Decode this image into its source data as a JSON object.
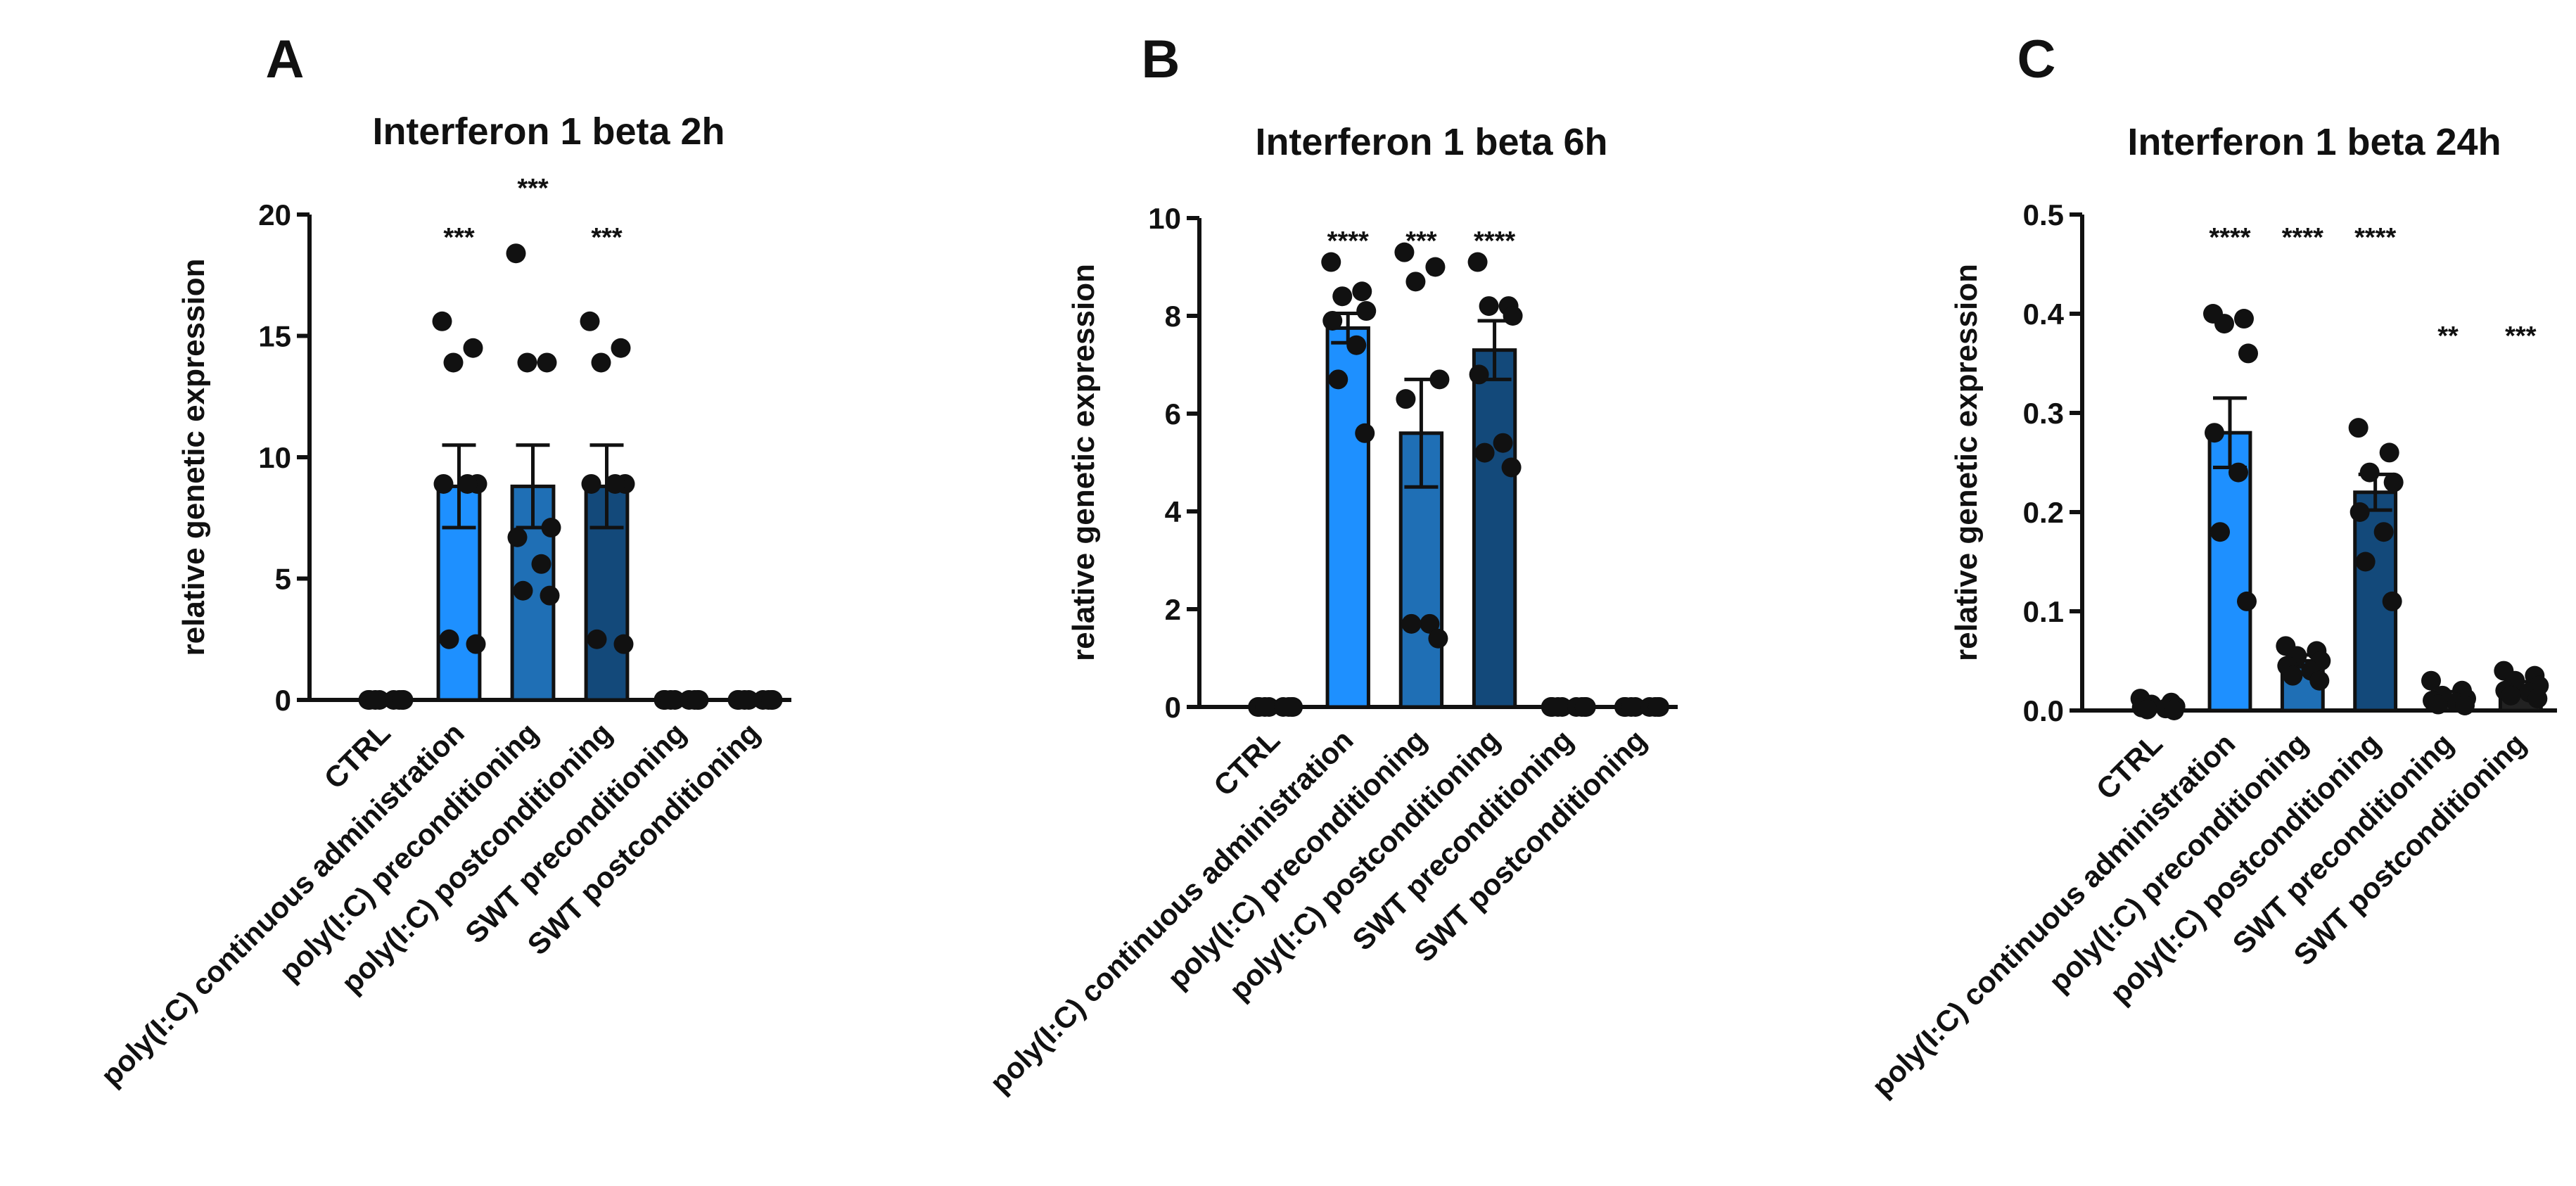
{
  "chart_data": [
    {
      "type": "bar",
      "panel": "A",
      "title": "Interferon 1 beta 2h",
      "ylabel": "relative genetic expression",
      "xlabel": "",
      "ylim": [
        0,
        20
      ],
      "yticks": [
        0,
        5,
        10,
        15,
        20
      ],
      "categories": [
        "CTRL",
        "poly(I:C) continuous administration",
        "poly(I:C) preconditioning",
        "poly(I:C) postconditioning",
        "SWT preconditioning",
        "SWT postconditioning"
      ],
      "colors": [
        "#222222",
        "#1E90FF",
        "#1F6FB5",
        "#13497A",
        "#222222",
        "#222222"
      ],
      "values": [
        0.0,
        8.8,
        8.8,
        8.8,
        0.0,
        0.0
      ],
      "errors": [
        0,
        1.7,
        1.7,
        1.7,
        0,
        0
      ],
      "significance": [
        "",
        "***",
        "***",
        "***",
        "",
        ""
      ],
      "points": [
        [
          0,
          0,
          0,
          0,
          0,
          0,
          0,
          0
        ],
        [
          15.6,
          14.5,
          13.9,
          8.9,
          8.9,
          8.9,
          2.5,
          2.3
        ],
        [
          18.4,
          13.9,
          13.9,
          7.1,
          6.7,
          5.6,
          4.5,
          4.3
        ],
        [
          15.6,
          14.5,
          13.9,
          8.9,
          8.9,
          8.9,
          2.5,
          2.3
        ],
        [
          0,
          0,
          0,
          0,
          0,
          0,
          0,
          0
        ],
        [
          0,
          0,
          0,
          0,
          0,
          0,
          0,
          0
        ]
      ]
    },
    {
      "type": "bar",
      "panel": "B",
      "title": "Interferon 1 beta 6h",
      "ylabel": "relative genetic expression",
      "xlabel": "",
      "ylim": [
        0,
        10
      ],
      "yticks": [
        0,
        2,
        4,
        6,
        8,
        10
      ],
      "categories": [
        "CTRL",
        "poly(I:C) continuous administration",
        "poly(I:C) preconditioning",
        "poly(I:C) postconditioning",
        "SWT preconditioning",
        "SWT postconditioning"
      ],
      "colors": [
        "#222222",
        "#1E90FF",
        "#1F6FB5",
        "#13497A",
        "#222222",
        "#222222"
      ],
      "values": [
        0.0,
        7.75,
        5.6,
        7.3,
        0.0,
        0.0
      ],
      "errors": [
        0,
        0.3,
        1.1,
        0.6,
        0,
        0
      ],
      "significance": [
        "",
        "****",
        "***",
        "****",
        "",
        ""
      ],
      "points": [
        [
          0,
          0,
          0,
          0,
          0,
          0,
          0,
          0
        ],
        [
          9.1,
          8.5,
          8.4,
          8.1,
          7.9,
          7.4,
          6.7,
          5.6
        ],
        [
          9.3,
          9.0,
          8.7,
          6.7,
          6.3,
          1.7,
          1.7,
          1.4
        ],
        [
          9.1,
          8.2,
          8.2,
          8.0,
          6.8,
          5.4,
          5.2,
          4.9
        ],
        [
          0,
          0,
          0,
          0,
          0,
          0,
          0,
          0
        ],
        [
          0,
          0,
          0,
          0,
          0,
          0,
          0,
          0
        ]
      ]
    },
    {
      "type": "bar",
      "panel": "C",
      "title": "Interferon 1 beta 24h",
      "ylabel": "relative genetic expression",
      "xlabel": "",
      "ylim": [
        0,
        0.5
      ],
      "yticks": [
        "0.0",
        "0.1",
        "0.2",
        "0.3",
        "0.4",
        "0.5"
      ],
      "categories": [
        "CTRL",
        "poly(I:C) continuous administration",
        "poly(I:C) preconditioning",
        "poly(I:C) postconditioning",
        "SWT preconditioning",
        "SWT postconditioning"
      ],
      "colors": [
        "#222222",
        "#1E90FF",
        "#1F6FB5",
        "#13497A",
        "#222222",
        "#222222"
      ],
      "values": [
        0.005,
        0.28,
        0.05,
        0.22,
        0.015,
        0.025
      ],
      "errors": [
        0.002,
        0.035,
        0.006,
        0.018,
        0.004,
        0.004
      ],
      "significance": [
        "",
        "****",
        "****",
        "****",
        "**",
        "***"
      ],
      "points": [
        [
          0.012,
          0.008,
          0.006,
          0.004,
          0.003,
          0.002,
          0.001,
          0.0
        ],
        [
          0.4,
          0.395,
          0.39,
          0.36,
          0.28,
          0.24,
          0.18,
          0.11
        ],
        [
          0.065,
          0.06,
          0.055,
          0.05,
          0.045,
          0.04,
          0.035,
          0.03
        ],
        [
          0.285,
          0.26,
          0.24,
          0.23,
          0.2,
          0.18,
          0.15,
          0.11
        ],
        [
          0.03,
          0.02,
          0.015,
          0.012,
          0.01,
          0.008,
          0.006,
          0.005
        ],
        [
          0.04,
          0.035,
          0.03,
          0.025,
          0.02,
          0.018,
          0.015,
          0.012
        ]
      ]
    }
  ]
}
